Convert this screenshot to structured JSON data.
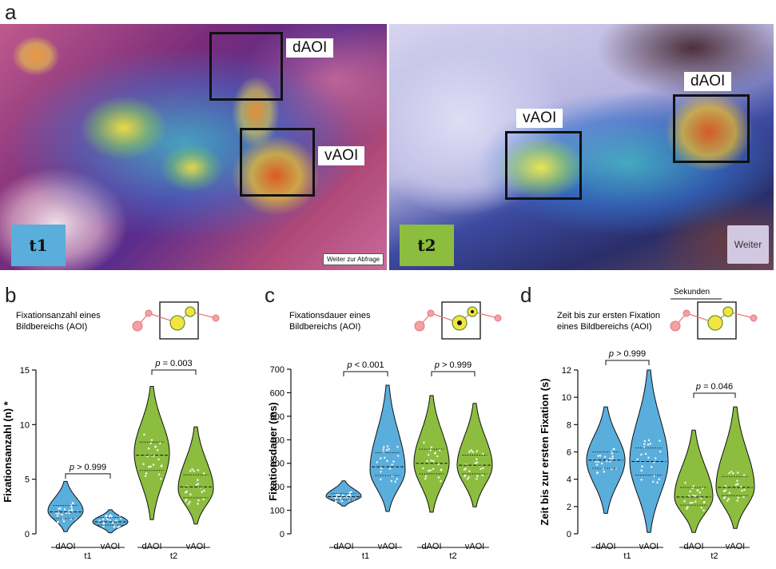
{
  "panel_labels": {
    "a": "a",
    "b": "b",
    "c": "c",
    "d": "d"
  },
  "heatmaps": {
    "t1": {
      "tag": "t1",
      "tag_color": "#5aaedc",
      "aoi_labels": [
        "dAOI",
        "vAOI"
      ],
      "button_label": "Weiter zur Abfrage"
    },
    "t2": {
      "tag": "t2",
      "tag_color": "#8cbd3f",
      "aoi_labels": [
        "dAOI",
        "vAOI"
      ],
      "button_label": "Weiter"
    }
  },
  "colors": {
    "t1": "#5aaedc",
    "t2": "#8cbd3f",
    "aoi_dot_fill": "#f4e442",
    "path_red": "#e8747a"
  },
  "chart_data": [
    {
      "type": "violin",
      "panel": "b",
      "title": "Fixationsanzahl eines Bildbereichs (AOI)",
      "ylabel": "Fixationsanzahl (n) *",
      "ylim": [
        0,
        15
      ],
      "yticks": [
        0,
        5,
        10,
        15
      ],
      "categories": [
        "dAOI",
        "vAOI",
        "dAOI",
        "vAOI"
      ],
      "groups": [
        "t1",
        "t2"
      ],
      "series": [
        {
          "group": "t1",
          "category": "dAOI",
          "median": 2.0,
          "q1": 1.4,
          "q3": 2.6,
          "min": 0.2,
          "max": 4.8,
          "peak": 2.1
        },
        {
          "group": "t1",
          "category": "vAOI",
          "median": 1.1,
          "q1": 0.8,
          "q3": 1.5,
          "min": 0.1,
          "max": 2.2,
          "peak": 1.1
        },
        {
          "group": "t2",
          "category": "dAOI",
          "median": 7.2,
          "q1": 5.8,
          "q3": 8.4,
          "min": 1.3,
          "max": 13.5,
          "peak": 7.4
        },
        {
          "group": "t2",
          "category": "vAOI",
          "median": 4.3,
          "q1": 3.3,
          "q3": 5.4,
          "min": 0.9,
          "max": 9.8,
          "peak": 4.1
        }
      ],
      "annotations": [
        {
          "between": [
            0,
            1
          ],
          "label": "p > 0.999",
          "y": 5.5
        },
        {
          "between": [
            2,
            3
          ],
          "label": "p = 0.003",
          "y": 15.0
        }
      ]
    },
    {
      "type": "violin",
      "panel": "c",
      "title": "Fixationsdauer eines Bildbereichs (AOI)",
      "ylabel": "Fixationsdauer (ms)",
      "ylim": [
        0,
        700
      ],
      "yticks": [
        0,
        100,
        200,
        300,
        400,
        500,
        600,
        700
      ],
      "categories": [
        "dAOI",
        "vAOI",
        "dAOI",
        "vAOI"
      ],
      "groups": [
        "t1",
        "t2"
      ],
      "series": [
        {
          "group": "t1",
          "category": "dAOI",
          "median": 158,
          "q1": 145,
          "q3": 172,
          "min": 118,
          "max": 225,
          "peak": 160
        },
        {
          "group": "t1",
          "category": "vAOI",
          "median": 285,
          "q1": 248,
          "q3": 345,
          "min": 95,
          "max": 632,
          "peak": 270
        },
        {
          "group": "t2",
          "category": "dAOI",
          "median": 300,
          "q1": 255,
          "q3": 360,
          "min": 92,
          "max": 588,
          "peak": 300
        },
        {
          "group": "t2",
          "category": "vAOI",
          "median": 292,
          "q1": 255,
          "q3": 335,
          "min": 115,
          "max": 555,
          "peak": 290
        }
      ],
      "annotations": [
        {
          "between": [
            0,
            1
          ],
          "label": "p < 0.001",
          "y": 690
        },
        {
          "between": [
            2,
            3
          ],
          "label": "p > 0.999",
          "y": 690
        }
      ]
    },
    {
      "type": "violin",
      "panel": "d",
      "title": "Zeit bis zur ersten Fixation eines Bildbereichs (AOI)",
      "ylabel": "Zeit bis zur ersten Fixation (s)",
      "ylim": [
        0,
        12
      ],
      "yticks": [
        0,
        2,
        4,
        6,
        8,
        10,
        12
      ],
      "categories": [
        "dAOI",
        "vAOI",
        "dAOI",
        "vAOI"
      ],
      "groups": [
        "t1",
        "t2"
      ],
      "series": [
        {
          "group": "t1",
          "category": "dAOI",
          "median": 5.4,
          "q1": 4.8,
          "q3": 6.0,
          "min": 1.5,
          "max": 9.3,
          "peak": 5.4
        },
        {
          "group": "t1",
          "category": "vAOI",
          "median": 5.3,
          "q1": 4.3,
          "q3": 6.3,
          "min": 0.1,
          "max": 12.0,
          "peak": 5.3
        },
        {
          "group": "t2",
          "category": "dAOI",
          "median": 2.7,
          "q1": 2.1,
          "q3": 3.4,
          "min": 0.1,
          "max": 7.6,
          "peak": 2.7
        },
        {
          "group": "t2",
          "category": "vAOI",
          "median": 3.4,
          "q1": 2.8,
          "q3": 4.2,
          "min": 0.4,
          "max": 9.3,
          "peak": 3.4
        }
      ],
      "annotations": [
        {
          "between": [
            0,
            1
          ],
          "label": "p > 0.999",
          "y": 13.0
        },
        {
          "between": [
            2,
            3
          ],
          "label": "p = 0.046",
          "y": 10.3
        }
      ],
      "extra_label": "Sekunden"
    }
  ]
}
